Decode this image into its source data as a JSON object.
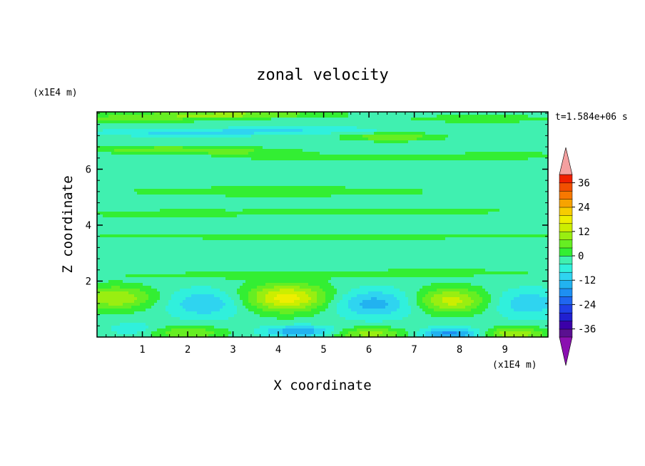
{
  "chart_data": {
    "type": "heatmap",
    "title": "zonal velocity",
    "xlabel": "X coordinate",
    "ylabel": "Z coordinate",
    "x_unit": "(x1E4 m)",
    "y_unit": "(x1E4 m)",
    "time_label": "t=1.584e+06 s",
    "xlim": [
      0,
      9.95
    ],
    "ylim": [
      0,
      8.05
    ],
    "x_ticks": [
      1,
      2,
      3,
      4,
      5,
      6,
      7,
      8,
      9
    ],
    "y_ticks": [
      2,
      4,
      6
    ],
    "grid": false,
    "colorbar": {
      "levels": [
        -40,
        -36,
        -32,
        -28,
        -24,
        -20,
        -16,
        -12,
        -8,
        -4,
        0,
        4,
        8,
        12,
        16,
        20,
        24,
        28,
        32,
        36,
        40
      ],
      "colors": [
        "#5a1090",
        "#3b00a8",
        "#2020d0",
        "#1f3fe6",
        "#1f66f0",
        "#1e8ff2",
        "#22b2f0",
        "#2fd4f0",
        "#30f0dc",
        "#40f0b0",
        "#33ee33",
        "#66ee22",
        "#99ee11",
        "#ccee00",
        "#eeee00",
        "#f7cc00",
        "#f7a300",
        "#f77800",
        "#f25000",
        "#f02000"
      ],
      "under_color": "#8a10b0",
      "over_color": "#f4a0a0",
      "tick_labels": [
        "36",
        "24",
        "12",
        "0",
        "-12",
        "-24",
        "-36"
      ],
      "tick_values": [
        36,
        24,
        12,
        0,
        -12,
        -24,
        -36
      ]
    },
    "background_value": -2,
    "field_features": [
      {
        "x": 0.4,
        "z": 1.4,
        "sx": 0.85,
        "sz": 0.42,
        "v": 14
      },
      {
        "x": 2.4,
        "z": 1.2,
        "sx": 0.85,
        "sz": 0.5,
        "v": -10
      },
      {
        "x": 4.2,
        "z": 1.4,
        "sx": 0.95,
        "sz": 0.5,
        "v": 20
      },
      {
        "x": 6.1,
        "z": 1.2,
        "sx": 0.95,
        "sz": 0.5,
        "v": -12
      },
      {
        "x": 7.8,
        "z": 1.3,
        "sx": 0.8,
        "sz": 0.45,
        "v": 16
      },
      {
        "x": 9.5,
        "z": 1.2,
        "sx": 0.8,
        "sz": 0.5,
        "v": -9
      },
      {
        "x": 2.0,
        "z": 0.15,
        "sx": 0.8,
        "sz": 0.22,
        "v": 10
      },
      {
        "x": 6.0,
        "z": 0.12,
        "sx": 0.9,
        "sz": 0.22,
        "v": 12
      },
      {
        "x": 9.2,
        "z": 0.12,
        "sx": 0.7,
        "sz": 0.22,
        "v": 14
      },
      {
        "x": 4.5,
        "z": 0.2,
        "sx": 0.8,
        "sz": 0.2,
        "v": -14
      },
      {
        "x": 7.8,
        "z": 0.12,
        "sx": 0.7,
        "sz": 0.2,
        "v": -16
      },
      {
        "x": 0.8,
        "z": 0.3,
        "sx": 0.5,
        "sz": 0.2,
        "v": -6
      },
      {
        "x": 3.0,
        "z": 2.2,
        "sx": 2.5,
        "sz": 0.13,
        "v": 4
      },
      {
        "x": 7.5,
        "z": 2.3,
        "sx": 2.5,
        "sz": 0.13,
        "v": 4
      },
      {
        "x": 5.0,
        "z": 3.6,
        "sx": 6.0,
        "sz": 0.12,
        "v": 4
      },
      {
        "x": 1.5,
        "z": 4.4,
        "sx": 2.0,
        "sz": 0.15,
        "v": 4
      },
      {
        "x": 6.5,
        "z": 4.5,
        "sx": 3.0,
        "sz": 0.15,
        "v": 4
      },
      {
        "x": 4.0,
        "z": 5.2,
        "sx": 4.0,
        "sz": 0.2,
        "v": 4
      },
      {
        "x": 1.5,
        "z": 6.7,
        "sx": 1.8,
        "sz": 0.12,
        "v": 9
      },
      {
        "x": 5.5,
        "z": 6.4,
        "sx": 2.2,
        "sz": 0.12,
        "v": 5
      },
      {
        "x": 3.2,
        "z": 6.6,
        "sx": 1.5,
        "sz": 0.12,
        "v": 5
      },
      {
        "x": 6.5,
        "z": 7.15,
        "sx": 1.0,
        "sz": 0.14,
        "v": 10
      },
      {
        "x": 9.0,
        "z": 6.5,
        "sx": 1.0,
        "sz": 0.15,
        "v": 5
      },
      {
        "x": 2.0,
        "z": 7.3,
        "sx": 2.2,
        "sz": 0.12,
        "v": -7
      },
      {
        "x": 4.5,
        "z": 7.4,
        "sx": 2.0,
        "sz": 0.12,
        "v": -5
      },
      {
        "x": 0.8,
        "z": 7.8,
        "sx": 1.4,
        "sz": 0.15,
        "v": 8
      },
      {
        "x": 3.0,
        "z": 7.95,
        "sx": 2.0,
        "sz": 0.12,
        "v": 12
      },
      {
        "x": 8.5,
        "z": 7.8,
        "sx": 1.5,
        "sz": 0.12,
        "v": 6
      }
    ]
  }
}
